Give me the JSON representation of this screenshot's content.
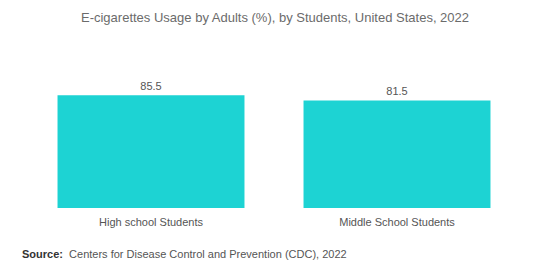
{
  "chart_data": {
    "type": "bar",
    "title": "E-cigarettes Usage by Adults (%), by Students, United States, 2022",
    "categories": [
      "High school Students",
      "Middle School Students"
    ],
    "values": [
      85.5,
      81.5
    ],
    "color": "#1dd3d3",
    "ylim": [
      0,
      100
    ],
    "yticks": [
      0,
      100
    ],
    "grid": false,
    "data_labels": true,
    "tick_labels": "x",
    "source": "Source:  Centers for Disease Control and Prevention (CDC), 2022"
  }
}
